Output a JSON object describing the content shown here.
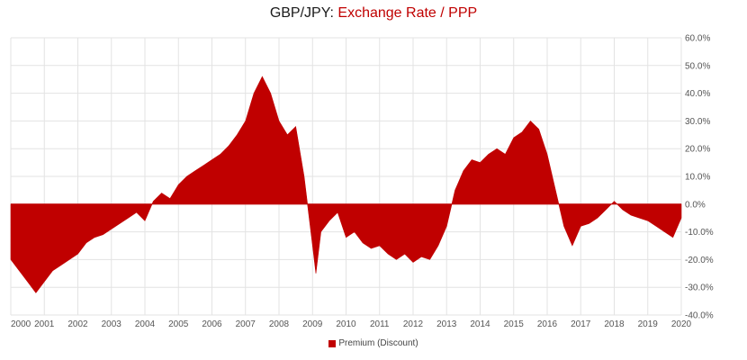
{
  "chart_data": {
    "type": "area",
    "title_main": "GBP/JPY: ",
    "title_accent": "Exchange Rate / PPP",
    "series": [
      {
        "name": "Premium (Discount)",
        "color": "#c00000",
        "points": [
          [
            2000.0,
            -20
          ],
          [
            2000.25,
            -24
          ],
          [
            2000.5,
            -28
          ],
          [
            2000.75,
            -32
          ],
          [
            2001.0,
            -28
          ],
          [
            2001.25,
            -24
          ],
          [
            2001.5,
            -22
          ],
          [
            2001.75,
            -20
          ],
          [
            2002.0,
            -18
          ],
          [
            2002.25,
            -14
          ],
          [
            2002.5,
            -12
          ],
          [
            2002.75,
            -11
          ],
          [
            2003.0,
            -9
          ],
          [
            2003.25,
            -7
          ],
          [
            2003.5,
            -5
          ],
          [
            2003.75,
            -3
          ],
          [
            2004.0,
            -6
          ],
          [
            2004.25,
            1
          ],
          [
            2004.5,
            4
          ],
          [
            2004.75,
            2
          ],
          [
            2005.0,
            7
          ],
          [
            2005.25,
            10
          ],
          [
            2005.5,
            12
          ],
          [
            2005.75,
            14
          ],
          [
            2006.0,
            16
          ],
          [
            2006.25,
            18
          ],
          [
            2006.5,
            21
          ],
          [
            2006.75,
            25
          ],
          [
            2007.0,
            30
          ],
          [
            2007.25,
            40
          ],
          [
            2007.5,
            46
          ],
          [
            2007.75,
            40
          ],
          [
            2008.0,
            30
          ],
          [
            2008.25,
            25
          ],
          [
            2008.5,
            28
          ],
          [
            2008.75,
            10
          ],
          [
            2009.0,
            -15
          ],
          [
            2009.1,
            -25
          ],
          [
            2009.25,
            -10
          ],
          [
            2009.5,
            -6
          ],
          [
            2009.75,
            -3
          ],
          [
            2010.0,
            -12
          ],
          [
            2010.25,
            -10
          ],
          [
            2010.5,
            -14
          ],
          [
            2010.75,
            -16
          ],
          [
            2011.0,
            -15
          ],
          [
            2011.25,
            -18
          ],
          [
            2011.5,
            -20
          ],
          [
            2011.75,
            -18
          ],
          [
            2012.0,
            -21
          ],
          [
            2012.25,
            -19
          ],
          [
            2012.5,
            -20
          ],
          [
            2012.75,
            -15
          ],
          [
            2013.0,
            -8
          ],
          [
            2013.25,
            5
          ],
          [
            2013.5,
            12
          ],
          [
            2013.75,
            16
          ],
          [
            2014.0,
            15
          ],
          [
            2014.25,
            18
          ],
          [
            2014.5,
            20
          ],
          [
            2014.75,
            18
          ],
          [
            2015.0,
            24
          ],
          [
            2015.25,
            26
          ],
          [
            2015.5,
            30
          ],
          [
            2015.75,
            27
          ],
          [
            2016.0,
            18
          ],
          [
            2016.25,
            5
          ],
          [
            2016.5,
            -8
          ],
          [
            2016.75,
            -15
          ],
          [
            2017.0,
            -8
          ],
          [
            2017.25,
            -7
          ],
          [
            2017.5,
            -5
          ],
          [
            2017.75,
            -2
          ],
          [
            2018.0,
            1
          ],
          [
            2018.25,
            -2
          ],
          [
            2018.5,
            -4
          ],
          [
            2018.75,
            -5
          ],
          [
            2019.0,
            -6
          ],
          [
            2019.25,
            -8
          ],
          [
            2019.5,
            -10
          ],
          [
            2019.75,
            -12
          ],
          [
            2020.0,
            -5
          ]
        ]
      }
    ],
    "x_ticks": [
      "2000",
      "2001",
      "2002",
      "2003",
      "2004",
      "2005",
      "2006",
      "2007",
      "2008",
      "2009",
      "2010",
      "2011",
      "2012",
      "2013",
      "2014",
      "2015",
      "2016",
      "2017",
      "2018",
      "2019",
      "2020"
    ],
    "xlim": [
      2000,
      2020
    ],
    "y_ticks": [
      "60.0%",
      "50.0%",
      "40.0%",
      "30.0%",
      "20.0%",
      "10.0%",
      "0.0%",
      "-10.0%",
      "-20.0%",
      "-30.0%",
      "-40.0%"
    ],
    "ylim": [
      -40,
      60
    ],
    "grid": true,
    "legend": "bottom"
  }
}
